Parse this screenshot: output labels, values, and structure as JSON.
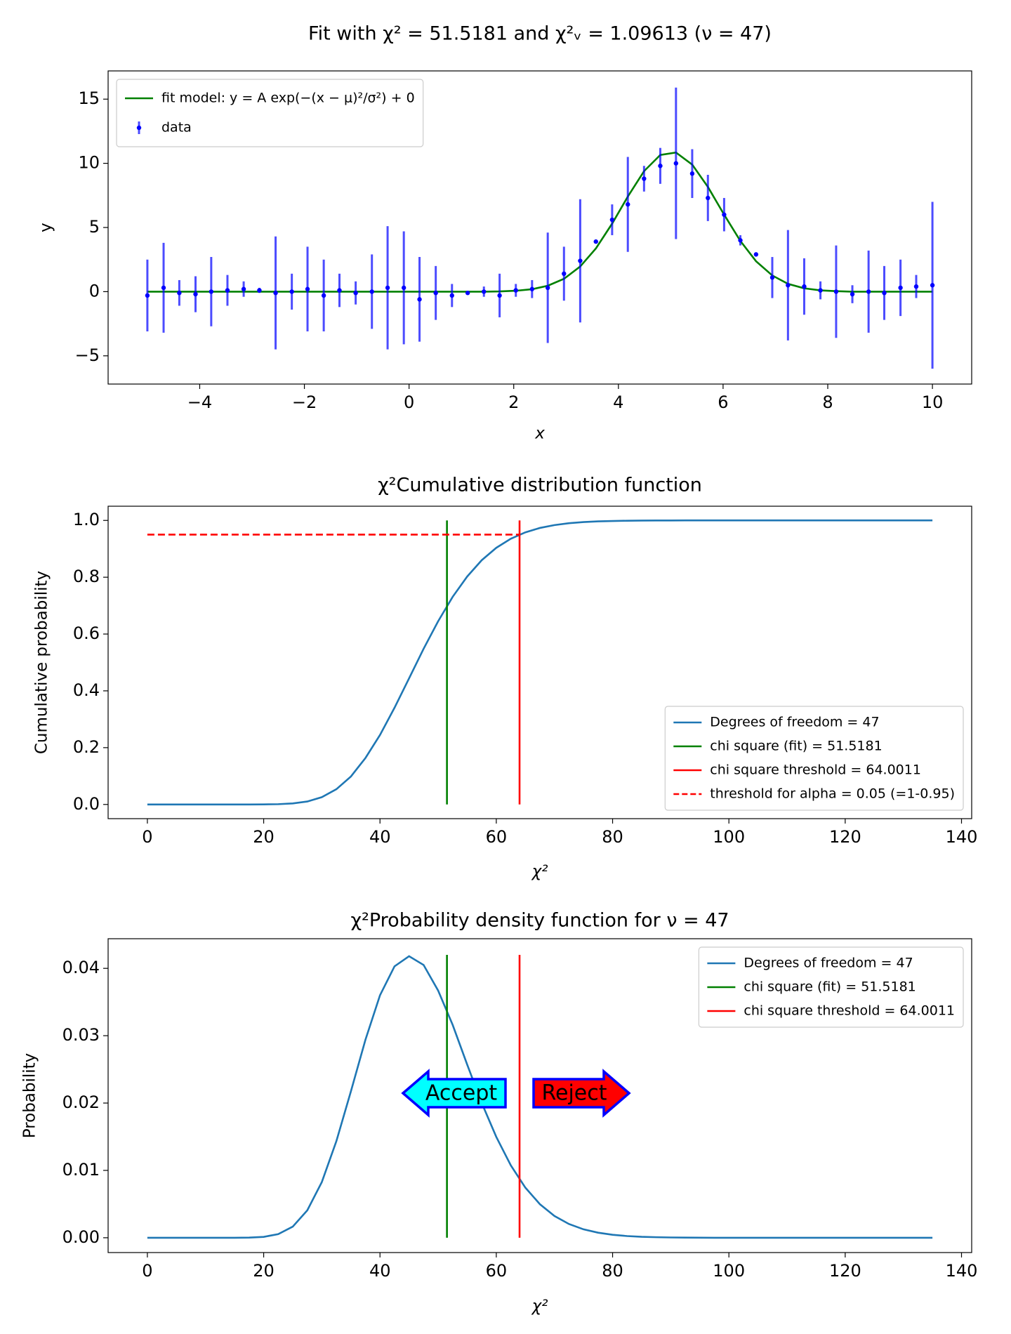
{
  "chart_data": [
    {
      "type": "errorbar",
      "title": "Fit with χ² = 51.5181 and χ²ᵥ = 1.09613 (ν = 47)",
      "xlabel": "x",
      "ylabel": "y",
      "xlim": [
        -5.75,
        10.75
      ],
      "ylim": [
        -7.2,
        17.2
      ],
      "xticks": [
        {
          "value": -4,
          "label": "−4"
        },
        {
          "value": -2,
          "label": "−2"
        },
        0,
        2,
        4,
        6,
        8,
        10
      ],
      "yticks": [
        {
          "value": -5,
          "label": "−5"
        },
        0,
        5,
        10,
        15
      ],
      "legend": "upper left",
      "x": [
        -5,
        -4.69,
        -4.39,
        -4.08,
        -3.78,
        -3.47,
        -3.16,
        -2.86,
        -2.55,
        -2.24,
        -1.94,
        -1.63,
        -1.33,
        -1.02,
        -0.71,
        -0.41,
        -0.1,
        0.2,
        0.51,
        0.82,
        1.12,
        1.43,
        1.73,
        2.04,
        2.35,
        2.65,
        2.96,
        3.27,
        3.57,
        3.88,
        4.18,
        4.49,
        4.8,
        5.1,
        5.41,
        5.71,
        6.02,
        6.33,
        6.63,
        6.94,
        7.24,
        7.55,
        7.86,
        8.16,
        8.47,
        8.78,
        9.08,
        9.39,
        9.69,
        10
      ],
      "series": [
        {
          "name": "fit model: y = A exp(−(x − μ)²/σ²) + 0",
          "type": "line",
          "color": "green",
          "values": [
            0,
            0,
            0,
            0,
            0,
            0,
            0,
            0,
            0,
            0,
            0,
            0,
            0,
            0,
            0,
            0,
            0,
            0,
            0,
            0,
            0,
            0,
            0.02,
            0.07,
            0.19,
            0.46,
            1.0,
            1.96,
            3.37,
            5.3,
            7.41,
            9.39,
            10.65,
            10.84,
            9.9,
            8.16,
            6.0,
            3.95,
            2.37,
            1.26,
            0.61,
            0.26,
            0.1,
            0.04,
            0,
            0,
            0,
            0,
            0,
            0
          ]
        },
        {
          "name": "data",
          "type": "errorbar",
          "color": "blue",
          "values": [
            -0.3,
            0.3,
            -0.1,
            -0.2,
            0.0,
            0.1,
            0.2,
            0.1,
            -0.1,
            0.0,
            0.2,
            -0.3,
            0.1,
            -0.1,
            0.0,
            0.3,
            0.3,
            -0.6,
            -0.1,
            -0.3,
            -0.1,
            0.0,
            -0.3,
            0.1,
            0.2,
            0.3,
            1.4,
            2.4,
            3.9,
            5.6,
            6.8,
            8.8,
            9.8,
            10.0,
            9.2,
            7.3,
            6.0,
            4.0,
            2.9,
            1.1,
            0.5,
            0.4,
            0.1,
            0.0,
            -0.2,
            0.0,
            -0.1,
            0.3,
            0.4,
            0.5
          ],
          "errors": [
            2.8,
            3.5,
            1.0,
            1.4,
            2.7,
            1.2,
            0.6,
            0.2,
            4.4,
            1.4,
            3.3,
            2.8,
            1.3,
            0.9,
            2.9,
            4.8,
            4.4,
            3.3,
            2.1,
            0.9,
            0.1,
            0.4,
            1.7,
            0.5,
            0.7,
            4.3,
            2.1,
            4.8,
            0.1,
            1.2,
            3.7,
            1.0,
            1.4,
            5.9,
            1.9,
            1.8,
            1.3,
            0.4,
            0.1,
            1.6,
            4.3,
            2.2,
            0.7,
            3.6,
            0.7,
            3.2,
            2.1,
            2.2,
            0.9,
            6.5
          ]
        }
      ]
    },
    {
      "type": "line",
      "title": "χ²Cumulative distribution function",
      "xlabel": "χ²",
      "ylabel": "Cumulative probability",
      "xlim": [
        -6.75,
        141.75
      ],
      "ylim": [
        -0.05,
        1.05
      ],
      "xticks": [
        0,
        20,
        40,
        60,
        80,
        100,
        120,
        140
      ],
      "yticks": [
        {
          "value": 0,
          "label": "0.0"
        },
        0.2,
        0.4,
        0.6,
        0.8,
        {
          "value": 1,
          "label": "1.0"
        }
      ],
      "legend": "lower right",
      "series": [
        {
          "name": "Degrees of freedom = 47",
          "type": "line",
          "color": "#1f77b4",
          "x": [
            0,
            2.5,
            5,
            7.5,
            10,
            12.5,
            15,
            17.5,
            20,
            22.5,
            25,
            27.5,
            30,
            32.5,
            35,
            37.5,
            40,
            42.5,
            45,
            47.5,
            50,
            52.5,
            55,
            57.5,
            60,
            62.5,
            65,
            67.5,
            70,
            72.5,
            75,
            77.5,
            80,
            82.5,
            85,
            87.5,
            90,
            92.5,
            95,
            97.5,
            100,
            102.5,
            105,
            107.5,
            110,
            112.5,
            115,
            117.5,
            120,
            122.5,
            125,
            127.5,
            130,
            132.5,
            135
          ],
          "values": [
            0,
            0,
            0,
            0,
            0,
            0,
            0,
            0,
            0.0002,
            0.001,
            0.0036,
            0.0104,
            0.0256,
            0.0537,
            0.0985,
            0.1635,
            0.2445,
            0.3405,
            0.444,
            0.548,
            0.645,
            0.731,
            0.8026,
            0.86,
            0.9036,
            0.9356,
            0.958,
            0.9735,
            0.9836,
            0.9901,
            0.9941,
            0.9966,
            0.998,
            0.9989,
            0.9994,
            0.9997,
            0.9998,
            1,
            1,
            1,
            1,
            1,
            1,
            1,
            1,
            1,
            1,
            1,
            1,
            1,
            1,
            1,
            1,
            1,
            1
          ]
        }
      ],
      "vlines": [
        {
          "name": "chi square (fit) = 51.5181",
          "color": "green",
          "x": 51.5181,
          "ymin": 0,
          "ymax": 1
        },
        {
          "name": "chi square threshold = 64.0011",
          "color": "red",
          "x": 64.0011,
          "ymin": 0,
          "ymax": 1
        }
      ],
      "hlines": [
        {
          "name": "threshold for alpha = 0.05 (=1-0.95)",
          "color": "red",
          "dashed": true,
          "y": 0.95,
          "xmin": 0,
          "xmax": 64.0011
        }
      ]
    },
    {
      "type": "line",
      "title": "χ²Probability density function for ν = 47",
      "xlabel": "χ²",
      "ylabel": "Probability",
      "xlim": [
        -6.75,
        141.75
      ],
      "ylim": [
        -0.0022,
        0.0444
      ],
      "xticks": [
        0,
        20,
        40,
        60,
        80,
        100,
        120,
        140
      ],
      "yticks": [
        {
          "value": 0,
          "label": "0.00"
        },
        {
          "value": 0.01,
          "label": "0.01"
        },
        {
          "value": 0.02,
          "label": "0.02"
        },
        {
          "value": 0.03,
          "label": "0.03"
        },
        {
          "value": 0.04,
          "label": "0.04"
        }
      ],
      "legend": "upper right",
      "series": [
        {
          "name": "Degrees of freedom = 47",
          "type": "line",
          "color": "#1f77b4",
          "x": [
            0,
            2.5,
            5,
            7.5,
            10,
            12.5,
            15,
            17.5,
            20,
            22.5,
            25,
            27.5,
            30,
            32.5,
            35,
            37.5,
            40,
            42.5,
            45,
            47.5,
            50,
            52.5,
            55,
            57.5,
            60,
            62.5,
            65,
            67.5,
            70,
            72.5,
            75,
            77.5,
            80,
            82.5,
            85,
            87.5,
            90,
            92.5,
            95,
            97.5,
            100,
            102.5,
            105,
            107.5,
            110,
            112.5,
            115,
            117.5,
            120,
            122.5,
            125,
            127.5,
            130,
            132.5,
            135
          ],
          "values": [
            0,
            0,
            0,
            0,
            0,
            0,
            0,
            2e-05,
            0.00013,
            0.00054,
            0.00165,
            0.00407,
            0.00827,
            0.01434,
            0.02174,
            0.0294,
            0.036,
            0.0403,
            0.0418,
            0.0405,
            0.0367,
            0.0316,
            0.0257,
            0.02,
            0.01497,
            0.01074,
            0.00744,
            0.00498,
            0.00323,
            0.00204,
            0.00125,
            0.00075,
            0.00044,
            0.00025,
            0.00014,
            8e-05,
            4e-05,
            2e-05,
            1e-05,
            0,
            0,
            0,
            0,
            0,
            0,
            0,
            0,
            0,
            0,
            0,
            0,
            0,
            0,
            0,
            0
          ]
        }
      ],
      "vlines": [
        {
          "name": "chi square (fit) = 51.5181",
          "color": "green",
          "x": 51.5181,
          "ymin": 0,
          "ymax": 0.042
        },
        {
          "name": "chi square threshold = 64.0011",
          "color": "red",
          "x": 64.0011,
          "ymin": 0,
          "ymax": 0.042
        }
      ],
      "annotations": [
        "Accept",
        "Reject"
      ]
    }
  ]
}
